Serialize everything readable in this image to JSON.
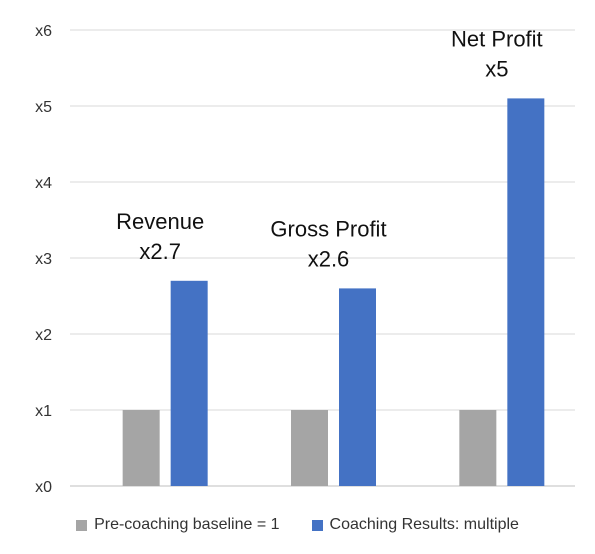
{
  "chart_data": {
    "type": "bar",
    "categories": [
      "Revenue",
      "Gross Profit",
      "Net Profit"
    ],
    "category_value_labels": [
      "x2.7",
      "x2.6",
      "x5"
    ],
    "series": [
      {
        "name": "Pre-coaching baseline = 1",
        "values": [
          1,
          1,
          1
        ],
        "color": "#a5a5a5"
      },
      {
        "name": "Coaching Results: multiple",
        "values": [
          2.7,
          2.6,
          5.1
        ],
        "color": "#4472c4"
      }
    ],
    "ylim": [
      0,
      6
    ],
    "y_ticks": [
      "x0",
      "x1",
      "x2",
      "x3",
      "x4",
      "x5",
      "x6"
    ],
    "grid": true,
    "gridline_color": "#d9d9d9",
    "legend_position": "bottom"
  }
}
